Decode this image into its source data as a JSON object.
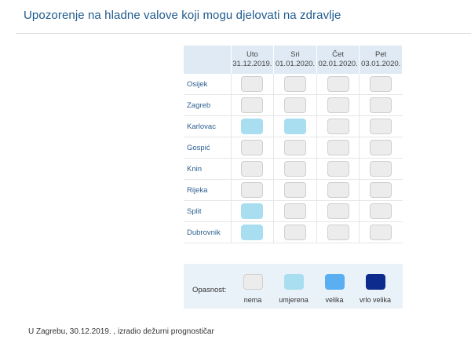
{
  "title": "Upozorenje na hladne valove koji mogu djelovati na zdravlje",
  "days": [
    {
      "day": "Uto",
      "date": "31.12.2019."
    },
    {
      "day": "Sri",
      "date": "01.01.2020."
    },
    {
      "day": "Čet",
      "date": "02.01.2020."
    },
    {
      "day": "Pet",
      "date": "03.01.2020."
    }
  ],
  "cities": [
    {
      "name": "Osijek",
      "levels": [
        "nema",
        "nema",
        "nema",
        "nema"
      ]
    },
    {
      "name": "Zagreb",
      "levels": [
        "nema",
        "nema",
        "nema",
        "nema"
      ]
    },
    {
      "name": "Karlovac",
      "levels": [
        "umjerena",
        "umjerena",
        "nema",
        "nema"
      ]
    },
    {
      "name": "Gospić",
      "levels": [
        "nema",
        "nema",
        "nema",
        "nema"
      ]
    },
    {
      "name": "Knin",
      "levels": [
        "nema",
        "nema",
        "nema",
        "nema"
      ]
    },
    {
      "name": "Rijeka",
      "levels": [
        "nema",
        "nema",
        "nema",
        "nema"
      ]
    },
    {
      "name": "Split",
      "levels": [
        "umjerena",
        "nema",
        "nema",
        "nema"
      ]
    },
    {
      "name": "Dubrovnik",
      "levels": [
        "umjerena",
        "nema",
        "nema",
        "nema"
      ]
    }
  ],
  "legend": {
    "label": "Opasnost:",
    "items": [
      {
        "key": "nema",
        "label": "nema",
        "color": "#ececec"
      },
      {
        "key": "umjerena",
        "label": "umjerena",
        "color": "#a8def0"
      },
      {
        "key": "velika",
        "label": "velika",
        "color": "#5aaef2"
      },
      {
        "key": "vrlo velika",
        "label": "vrlo velika",
        "color": "#0d2b8c"
      }
    ]
  },
  "footer": "U Zagrebu, 30.12.2019. , izradio dežurni prognostičar"
}
